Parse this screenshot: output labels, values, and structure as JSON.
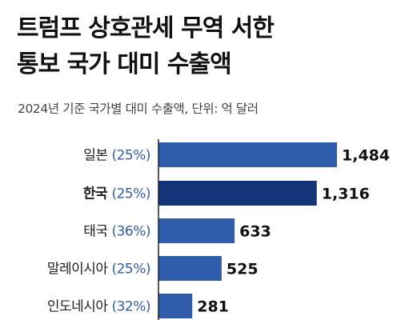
{
  "header": {
    "title_line1": "트럼프 상호관세 무역 서한",
    "title_line2": "통보 국가 대미 수출액",
    "subtitle": "2024년 기준 국가별 대미 수출액, 단위: 억 달러"
  },
  "colors": {
    "bar": "#2f5cab",
    "bar_highlight": "#14347a",
    "percent": "#2f5cab",
    "axis": "#222222"
  },
  "chart_data": {
    "type": "bar",
    "orientation": "horizontal",
    "title": "트럼프 상호관세 무역 서한 통보 국가 대미 수출액",
    "subtitle": "2024년 기준 국가별 대미 수출액, 단위: 억 달러",
    "categories": [
      "일본",
      "한국",
      "태국",
      "말레이시아",
      "인도네시아"
    ],
    "percent_labels": [
      "(25%)",
      "(25%)",
      "(36%)",
      "(25%)",
      "(32%)"
    ],
    "value_labels": [
      "1,484",
      "1,316",
      "633",
      "525",
      "281"
    ],
    "values": [
      1484,
      1316,
      633,
      525,
      281
    ],
    "highlight_index": 1,
    "xlim": [
      0,
      1484
    ],
    "grid": false,
    "legend": "none"
  }
}
